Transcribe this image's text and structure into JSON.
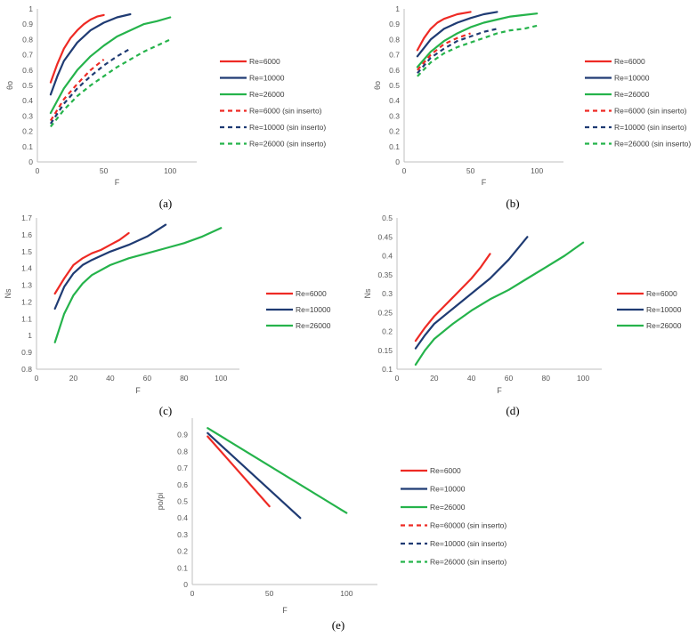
{
  "figure": {
    "colors": {
      "red": "#ee2a24",
      "blue": "#1f3b73",
      "green": "#25b34b",
      "axis": "#bfbfbf",
      "text": "#595959"
    }
  },
  "chart_data": [
    {
      "id": "a",
      "type": "line",
      "caption": "(a)",
      "xlabel": "F",
      "ylabel": "θo",
      "xlim": [
        0,
        120
      ],
      "xticks": [
        0,
        50,
        100
      ],
      "ylim": [
        0,
        1
      ],
      "yticks": [
        0,
        0.1,
        0.2,
        0.3,
        0.4,
        0.5,
        0.6,
        0.7,
        0.8,
        0.9,
        1
      ],
      "ytick_labels": [
        "0",
        "0.1",
        "0.2",
        "0.3",
        "0.4",
        "0.5",
        "0.6",
        "0.7",
        "0.8",
        "0.9",
        "1"
      ],
      "series": [
        {
          "name": "Re=6000",
          "color": "red",
          "dash": false,
          "x": [
            10,
            15,
            20,
            25,
            30,
            35,
            40,
            45,
            50
          ],
          "y": [
            0.52,
            0.64,
            0.74,
            0.81,
            0.86,
            0.9,
            0.93,
            0.95,
            0.96
          ]
        },
        {
          "name": "Re=10000",
          "color": "blue",
          "dash": false,
          "x": [
            10,
            15,
            20,
            30,
            40,
            50,
            60,
            70
          ],
          "y": [
            0.44,
            0.56,
            0.66,
            0.78,
            0.86,
            0.91,
            0.945,
            0.965
          ]
        },
        {
          "name": "Re=26000",
          "color": "green",
          "dash": false,
          "x": [
            10,
            20,
            30,
            40,
            50,
            60,
            70,
            80,
            90,
            100
          ],
          "y": [
            0.32,
            0.48,
            0.6,
            0.69,
            0.76,
            0.82,
            0.86,
            0.9,
            0.92,
            0.945
          ]
        },
        {
          "name": "Re=6000 (sin inserto)",
          "color": "red",
          "dash": true,
          "x": [
            10,
            20,
            30,
            40,
            50
          ],
          "y": [
            0.27,
            0.41,
            0.51,
            0.6,
            0.67
          ]
        },
        {
          "name": "Re=10000 (sin inserto)",
          "color": "blue",
          "dash": true,
          "x": [
            10,
            20,
            30,
            40,
            50,
            60,
            70
          ],
          "y": [
            0.25,
            0.38,
            0.48,
            0.56,
            0.63,
            0.69,
            0.74
          ]
        },
        {
          "name": "Re=26000 (sin inserto)",
          "color": "green",
          "dash": true,
          "x": [
            10,
            20,
            30,
            40,
            50,
            60,
            70,
            80,
            90,
            100
          ],
          "y": [
            0.23,
            0.34,
            0.43,
            0.5,
            0.56,
            0.62,
            0.67,
            0.72,
            0.76,
            0.8
          ]
        }
      ]
    },
    {
      "id": "b",
      "type": "line",
      "caption": "(b)",
      "xlabel": "F",
      "ylabel": "θo",
      "xlim": [
        0,
        120
      ],
      "xticks": [
        0,
        50,
        100
      ],
      "ylim": [
        0,
        1
      ],
      "yticks": [
        0,
        0.1,
        0.2,
        0.3,
        0.4,
        0.5,
        0.6,
        0.7,
        0.8,
        0.9,
        1
      ],
      "ytick_labels": [
        "0",
        "0.1",
        "0.2",
        "0.3",
        "0.4",
        "0.5",
        "0.6",
        "0.7",
        "0.8",
        "0.9",
        "1"
      ],
      "series": [
        {
          "name": "Re=6000",
          "color": "red",
          "dash": false,
          "x": [
            10,
            15,
            20,
            25,
            30,
            40,
            50
          ],
          "y": [
            0.73,
            0.81,
            0.87,
            0.91,
            0.935,
            0.965,
            0.98
          ]
        },
        {
          "name": "Re=10000",
          "color": "blue",
          "dash": false,
          "x": [
            10,
            20,
            30,
            40,
            50,
            60,
            70
          ],
          "y": [
            0.69,
            0.8,
            0.87,
            0.91,
            0.94,
            0.965,
            0.98
          ]
        },
        {
          "name": "Re=26000",
          "color": "green",
          "dash": false,
          "x": [
            10,
            20,
            30,
            40,
            50,
            60,
            70,
            80,
            90,
            100
          ],
          "y": [
            0.62,
            0.72,
            0.79,
            0.84,
            0.88,
            0.91,
            0.93,
            0.95,
            0.96,
            0.97
          ]
        },
        {
          "name": "Re=6000 (sin inserto)",
          "color": "red",
          "dash": true,
          "x": [
            10,
            20,
            30,
            40,
            50
          ],
          "y": [
            0.6,
            0.7,
            0.77,
            0.81,
            0.84
          ]
        },
        {
          "name": "R=10000 (sin inserto)",
          "color": "blue",
          "dash": true,
          "x": [
            10,
            20,
            30,
            40,
            50,
            60,
            70
          ],
          "y": [
            0.58,
            0.68,
            0.74,
            0.79,
            0.82,
            0.85,
            0.87
          ]
        },
        {
          "name": "Re=26000 (sin inserto)",
          "color": "green",
          "dash": true,
          "x": [
            10,
            20,
            30,
            40,
            50,
            60,
            70,
            80,
            90,
            100
          ],
          "y": [
            0.56,
            0.65,
            0.71,
            0.75,
            0.78,
            0.81,
            0.84,
            0.86,
            0.87,
            0.89
          ]
        }
      ]
    },
    {
      "id": "c",
      "type": "line",
      "caption": "(c)",
      "xlabel": "F",
      "ylabel": "Ns",
      "xlim": [
        0,
        110
      ],
      "xticks": [
        0,
        20,
        40,
        60,
        80,
        100
      ],
      "ylim": [
        0.8,
        1.7
      ],
      "yticks": [
        0.8,
        0.9,
        1,
        1.1,
        1.2,
        1.3,
        1.4,
        1.5,
        1.6,
        1.7
      ],
      "ytick_labels": [
        "0.8",
        "0.9",
        "1",
        "1.1",
        "1.2",
        "1.3",
        "1.4",
        "1.5",
        "1.6",
        "1.7"
      ],
      "series": [
        {
          "name": "Re=6000",
          "color": "red",
          "dash": false,
          "x": [
            10,
            15,
            20,
            25,
            30,
            35,
            40,
            45,
            50
          ],
          "y": [
            1.25,
            1.34,
            1.42,
            1.46,
            1.49,
            1.51,
            1.54,
            1.57,
            1.61
          ]
        },
        {
          "name": "Re=10000",
          "color": "blue",
          "dash": false,
          "x": [
            10,
            15,
            20,
            25,
            30,
            40,
            50,
            60,
            70
          ],
          "y": [
            1.16,
            1.29,
            1.37,
            1.42,
            1.45,
            1.5,
            1.54,
            1.59,
            1.66
          ]
        },
        {
          "name": "Re=26000",
          "color": "green",
          "dash": false,
          "x": [
            10,
            15,
            20,
            25,
            30,
            40,
            50,
            60,
            70,
            80,
            90,
            100
          ],
          "y": [
            0.96,
            1.13,
            1.24,
            1.31,
            1.36,
            1.42,
            1.46,
            1.49,
            1.52,
            1.55,
            1.59,
            1.64
          ]
        }
      ]
    },
    {
      "id": "d",
      "type": "line",
      "caption": "(d)",
      "xlabel": "F",
      "ylabel": "Ns",
      "xlim": [
        0,
        110
      ],
      "xticks": [
        0,
        20,
        40,
        60,
        80,
        100
      ],
      "ylim": [
        0.1,
        0.5
      ],
      "yticks": [
        0.1,
        0.15,
        0.2,
        0.25,
        0.3,
        0.35,
        0.4,
        0.45,
        0.5
      ],
      "ytick_labels": [
        "0.1",
        "0.15",
        "0.2",
        "0.25",
        "0.3",
        "0.35",
        "0.4",
        "0.45",
        "0.5"
      ],
      "series": [
        {
          "name": "Re=6000",
          "color": "red",
          "dash": false,
          "x": [
            10,
            15,
            20,
            25,
            30,
            35,
            40,
            45,
            50
          ],
          "y": [
            0.175,
            0.21,
            0.24,
            0.265,
            0.29,
            0.315,
            0.34,
            0.37,
            0.405
          ]
        },
        {
          "name": "Re=10000",
          "color": "blue",
          "dash": false,
          "x": [
            10,
            15,
            20,
            30,
            40,
            50,
            60,
            70
          ],
          "y": [
            0.155,
            0.19,
            0.22,
            0.26,
            0.3,
            0.34,
            0.39,
            0.45
          ]
        },
        {
          "name": "Re=26000",
          "color": "green",
          "dash": false,
          "x": [
            10,
            15,
            20,
            30,
            40,
            50,
            60,
            70,
            80,
            90,
            100
          ],
          "y": [
            0.112,
            0.15,
            0.18,
            0.22,
            0.255,
            0.285,
            0.31,
            0.34,
            0.37,
            0.4,
            0.435
          ]
        }
      ]
    },
    {
      "id": "e",
      "type": "line",
      "caption": "(e)",
      "xlabel": "F",
      "ylabel": "po/pi",
      "xlim": [
        0,
        120
      ],
      "xticks": [
        0,
        50,
        100
      ],
      "ylim": [
        0,
        1
      ],
      "yticks": [
        0,
        0.1,
        0.2,
        0.3,
        0.4,
        0.5,
        0.6,
        0.7,
        0.8,
        0.9
      ],
      "ytick_labels": [
        "0",
        "0.1",
        "0.2",
        "0.3",
        "0.4",
        "0.5",
        "0.6",
        "0.7",
        "0.8",
        "0.9"
      ],
      "series": [
        {
          "name": "Re=6000",
          "color": "red",
          "dash": false,
          "x": [
            10,
            50
          ],
          "y": [
            0.89,
            0.47
          ]
        },
        {
          "name": "Re=10000",
          "color": "blue",
          "dash": false,
          "x": [
            10,
            70
          ],
          "y": [
            0.91,
            0.4
          ]
        },
        {
          "name": "Re=26000",
          "color": "green",
          "dash": false,
          "x": [
            10,
            100
          ],
          "y": [
            0.94,
            0.43
          ]
        },
        {
          "name": "Re=60000 (sin inserto)",
          "color": "red",
          "dash": true,
          "x": [],
          "y": []
        },
        {
          "name": "Re=10000 (sin inserto)",
          "color": "blue",
          "dash": true,
          "x": [],
          "y": []
        },
        {
          "name": "Re=26000 (sin inserto)",
          "color": "green",
          "dash": true,
          "x": [],
          "y": []
        }
      ]
    }
  ]
}
